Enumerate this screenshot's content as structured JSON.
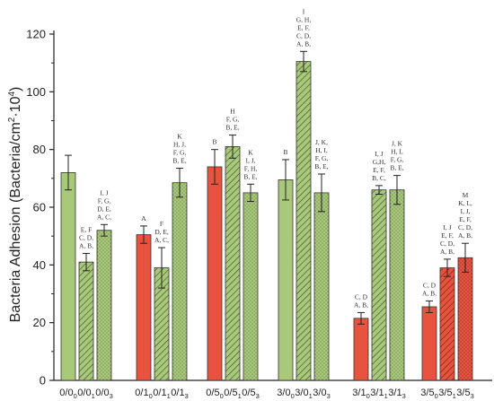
{
  "chart_data": {
    "type": "bar",
    "ylabel": "Bacteria Adhesion (Bacteria/cm²·10⁴)",
    "ylabel_parts": [
      "Bacteria Adhesion (Bacteria/cm",
      "2",
      "·10",
      "4",
      ")"
    ],
    "xlabel": "",
    "ylim": [
      0,
      120
    ],
    "yticks": [
      0,
      20,
      40,
      60,
      80,
      100,
      120
    ],
    "grid": false,
    "colors": {
      "red": "#e8533f",
      "green": "#a9c97a"
    },
    "groups": [
      {
        "bars": [
          {
            "base": "0/0",
            "sub": "0",
            "value": 72,
            "err": 6,
            "color": "green",
            "pattern": "solid",
            "annotation": []
          },
          {
            "base": "0/0",
            "sub": "1",
            "value": 41,
            "err": 3,
            "color": "green",
            "pattern": "hatch",
            "annotation": [
              "E, F",
              "C, D,",
              "A, B,"
            ]
          },
          {
            "base": "0/0",
            "sub": "3",
            "value": 52,
            "err": 2,
            "color": "green",
            "pattern": "dots",
            "annotation": [
              "I,  J",
              "F, G,",
              "D, E,",
              "A, C,"
            ]
          }
        ]
      },
      {
        "bars": [
          {
            "base": "0/1",
            "sub": "0",
            "value": 50.5,
            "err": 3,
            "color": "red",
            "pattern": "solid",
            "annotation": [
              "A"
            ]
          },
          {
            "base": "0/1",
            "sub": "1",
            "value": 39,
            "err": 7,
            "color": "green",
            "pattern": "hatch",
            "annotation": [
              "F",
              "D, E,",
              "A, C,"
            ]
          },
          {
            "base": "0/1",
            "sub": "3",
            "value": 68.5,
            "err": 5,
            "color": "green",
            "pattern": "dots",
            "annotation": [
              "K",
              "H, J,",
              "F, G,",
              "B, E,"
            ]
          }
        ]
      },
      {
        "bars": [
          {
            "base": "0/5",
            "sub": "0",
            "value": 74,
            "err": 6,
            "color": "red",
            "pattern": "solid",
            "annotation": [
              "B"
            ]
          },
          {
            "base": "0/5",
            "sub": "1",
            "value": 81,
            "err": 4,
            "color": "green",
            "pattern": "hatch",
            "annotation": [
              "H",
              "F, G,",
              "B, E,"
            ]
          },
          {
            "base": "0/5",
            "sub": "3",
            "value": 65,
            "err": 3,
            "color": "green",
            "pattern": "dots",
            "annotation": [
              "K",
              "I,  J,",
              "F, H,",
              "B, E,"
            ]
          }
        ]
      },
      {
        "bars": [
          {
            "base": "3/0",
            "sub": "0",
            "value": 69.5,
            "err": 7,
            "color": "green",
            "pattern": "solid",
            "annotation": [
              "B"
            ]
          },
          {
            "base": "3/0",
            "sub": "1",
            "value": 110.5,
            "err": 3.5,
            "color": "green",
            "pattern": "hatch",
            "annotation": [
              "I",
              "G, H,",
              "E, F,",
              "C, D,",
              "A, B,"
            ]
          },
          {
            "base": "3/0",
            "sub": "3",
            "value": 65,
            "err": 6.5,
            "color": "green",
            "pattern": "dots",
            "annotation": [
              "J, K,",
              "H, I,",
              "F, G,",
              "B, E,"
            ]
          }
        ]
      },
      {
        "bars": [
          {
            "base": "3/1",
            "sub": "0",
            "value": 21.5,
            "err": 2,
            "color": "red",
            "pattern": "solid",
            "annotation": [
              "C, D",
              "A, B,"
            ]
          },
          {
            "base": "3/1",
            "sub": "1",
            "value": 66,
            "err": 1.5,
            "color": "green",
            "pattern": "hatch",
            "annotation": [
              "I,  J",
              "G,H,",
              "E, F,",
              "B, C,"
            ]
          },
          {
            "base": "3/1",
            "sub": "3",
            "value": 66,
            "err": 5,
            "color": "green",
            "pattern": "dots",
            "annotation": [
              "J, K",
              "H, I,",
              "F, G,",
              "B, E,"
            ]
          }
        ]
      },
      {
        "bars": [
          {
            "base": "3/5",
            "sub": "0",
            "value": 25.5,
            "err": 2,
            "color": "red",
            "pattern": "solid",
            "annotation": [
              "C, D",
              "A, B,"
            ]
          },
          {
            "base": "3/5",
            "sub": "1",
            "value": 39,
            "err": 3,
            "color": "red",
            "pattern": "hatch",
            "annotation": [
              "I,  J",
              "E, F,",
              "C, D,",
              "A, B,"
            ]
          },
          {
            "base": "3/5",
            "sub": "3",
            "value": 42.5,
            "err": 5,
            "color": "red",
            "pattern": "dots",
            "annotation": [
              "M",
              "K, L,",
              "I,  J,",
              "E, F,",
              "C, D,",
              "A, B,"
            ]
          }
        ]
      }
    ]
  }
}
